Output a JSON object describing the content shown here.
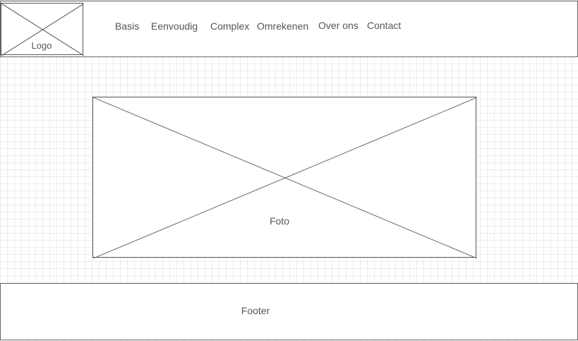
{
  "header": {
    "logo": {
      "label": "Logo",
      "icon": "image-placeholder-icon"
    },
    "nav": [
      {
        "label": "Basis"
      },
      {
        "label": "Eenvoudig"
      },
      {
        "label": "Complex"
      },
      {
        "label": "Omrekenen"
      },
      {
        "label": "Over ons"
      },
      {
        "label": "Contact"
      }
    ]
  },
  "main": {
    "photo": {
      "label": "Foto",
      "icon": "image-placeholder-icon"
    }
  },
  "footer": {
    "label": "Footer"
  },
  "colors": {
    "grid": "#ececec",
    "border": "#555555",
    "text": "#555555"
  }
}
